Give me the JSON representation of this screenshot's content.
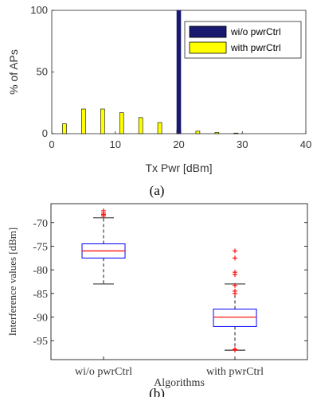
{
  "panel_a": {
    "label": "(a)",
    "chart_data": {
      "type": "bar",
      "xlabel": "Tx Pwr [dBm]",
      "ylabel": "% of APs",
      "xlim": [
        0,
        40
      ],
      "ylim": [
        0,
        100
      ],
      "xticks": [
        "0",
        "10",
        "20",
        "30",
        "40"
      ],
      "yticks": [
        "0",
        "50",
        "100"
      ],
      "legend_position": "top-right",
      "series": [
        {
          "name": "wi/o pwrCtrl",
          "color": "#191970",
          "x": [
            20
          ],
          "values": [
            100
          ]
        },
        {
          "name": "with pwrCtrl",
          "color": "#ffff00",
          "x": [
            2,
            5,
            8,
            11,
            14,
            17,
            20,
            23,
            26,
            29
          ],
          "values": [
            8,
            20,
            20,
            17,
            13,
            9,
            3,
            2,
            1,
            0.5
          ]
        }
      ]
    }
  },
  "panel_b": {
    "label": "(b)",
    "chart_data": {
      "type": "box",
      "xlabel": "Algorithms",
      "ylabel": "Interference values [dBm]",
      "categories": [
        "wi/o pwrCtrl",
        "with pwrCtrl"
      ],
      "ylim": [
        -99,
        -66
      ],
      "yticks": [
        "-70",
        "-75",
        "-80",
        "-85",
        "-90",
        "-95"
      ],
      "box_color": "#0000ff",
      "median_color": "#ff0000",
      "outlier_color": "#ff0000",
      "boxes": [
        {
          "category": "wi/o pwrCtrl",
          "whisker_low": -83,
          "q1": -77.5,
          "median": -76,
          "q3": -74.5,
          "whisker_high": -69,
          "outliers": [
            -67.5,
            -68,
            -68.3,
            -68.6
          ]
        },
        {
          "category": "with pwrCtrl",
          "whisker_low": -97,
          "q1": -92,
          "median": -90,
          "q3": -88.3,
          "whisker_high": -83,
          "outliers": [
            -76,
            -77.5,
            -80.5,
            -81,
            -83.3,
            -84.5,
            -85,
            -96.8,
            -97
          ]
        }
      ]
    }
  }
}
